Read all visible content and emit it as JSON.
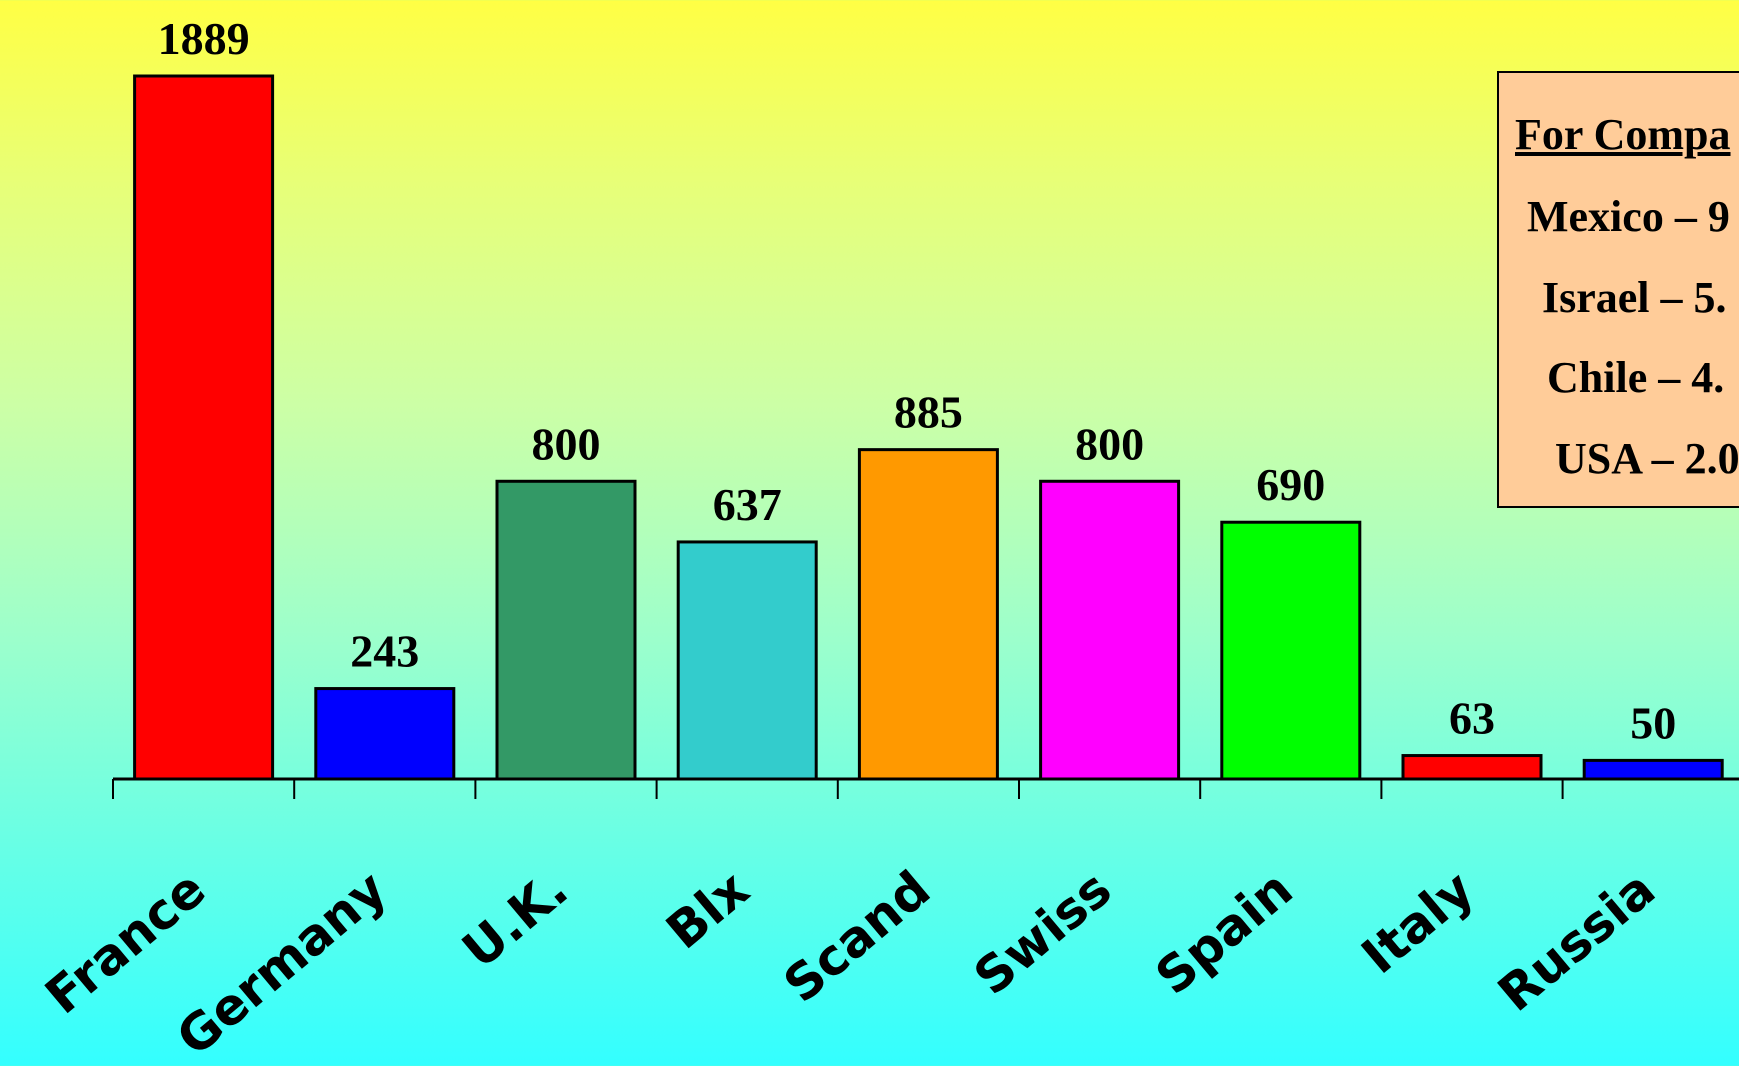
{
  "chart_data": {
    "type": "bar",
    "categories": [
      "France",
      "Germany",
      "U.K.",
      "Blx",
      "Scand",
      "Swiss",
      "Spain",
      "Italy",
      "Russia"
    ],
    "values": [
      1889,
      243,
      800,
      637,
      885,
      800,
      690,
      63,
      50
    ],
    "value_labels": [
      "1889",
      "243",
      "800",
      "637",
      "885",
      "800",
      "690",
      "63",
      "50"
    ],
    "colors": [
      "#ff0000",
      "#0000ff",
      "#339966",
      "#33cccc",
      "#ff9900",
      "#ff00ff",
      "#00ff00",
      "#ff0000",
      "#0000ff"
    ],
    "ylim": [
      0,
      1889
    ],
    "grid": false,
    "legend": "none"
  },
  "comparison": {
    "title": "For Compa",
    "items": [
      "Mexico – 9",
      "Israel – 5.",
      "Chile – 4.",
      "USA – 2.0"
    ]
  }
}
